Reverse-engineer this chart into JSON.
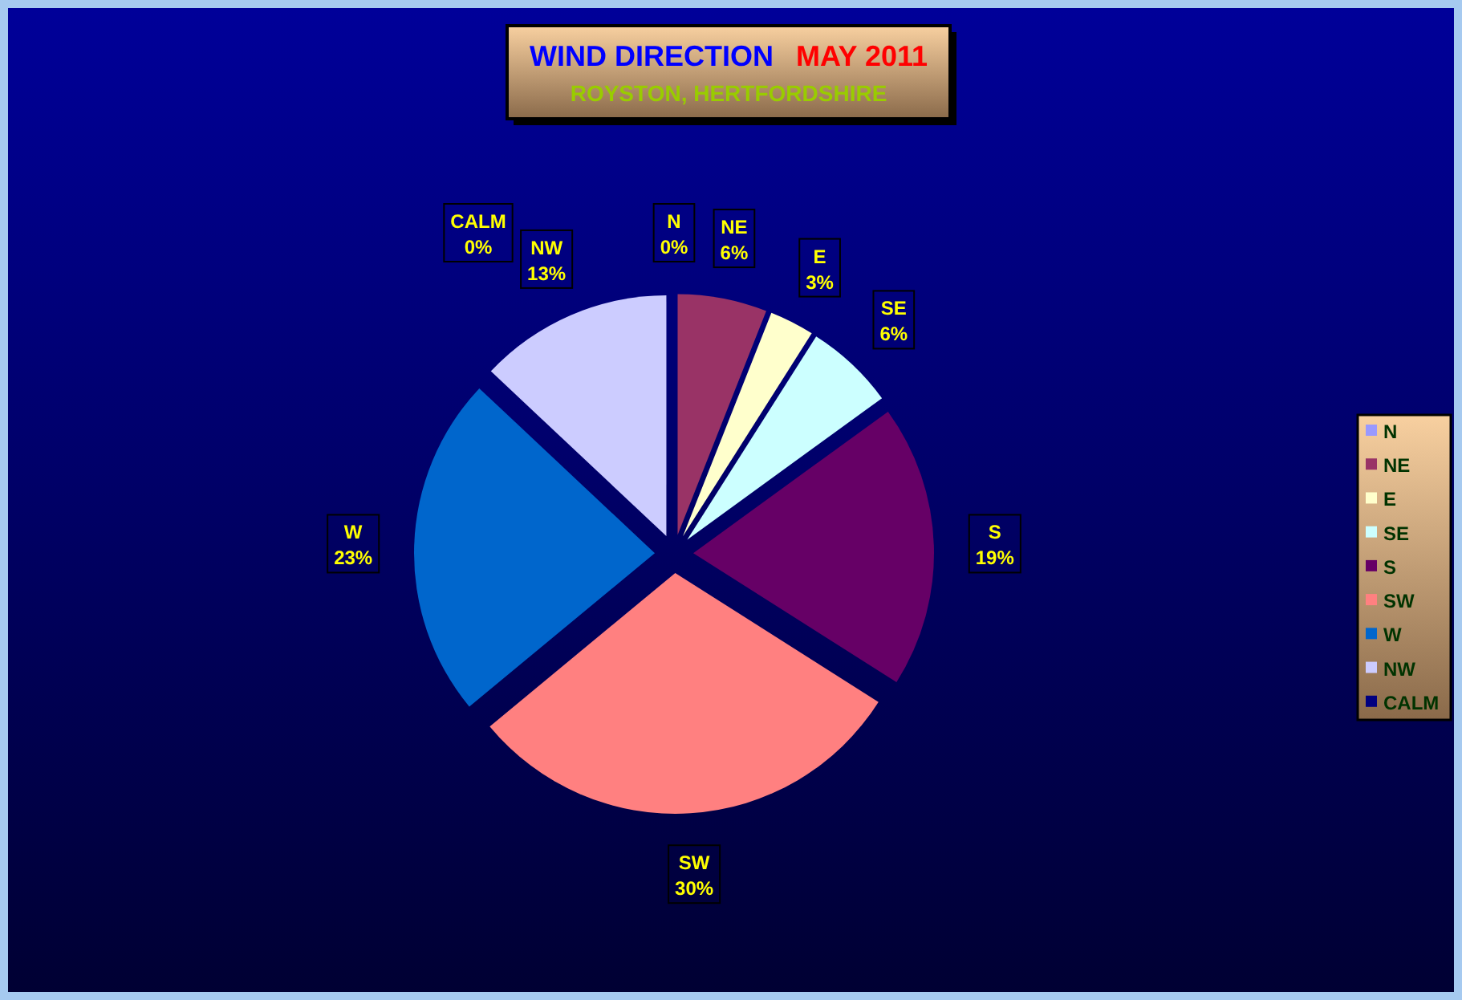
{
  "chart_data": {
    "type": "pie",
    "title": "WIND DIRECTION",
    "subtitle": "ROYSTON, HERTFORDSHIRE",
    "annotations": [
      "MAY 2011"
    ],
    "categories": [
      "N",
      "NE",
      "E",
      "SE",
      "S",
      "SW",
      "W",
      "NW",
      "CALM"
    ],
    "values": [
      0,
      6,
      3,
      6,
      19,
      30,
      23,
      13,
      0
    ],
    "value_labels": [
      "0%",
      "6%",
      "3%",
      "6%",
      "19%",
      "30%",
      "23%",
      "13%",
      "0%"
    ],
    "colors": [
      "#9999ff",
      "#993366",
      "#ffffcc",
      "#ccffff",
      "#660066",
      "#ff8080",
      "#0066cc",
      "#ccccff",
      "#000080"
    ],
    "legend": "right"
  }
}
